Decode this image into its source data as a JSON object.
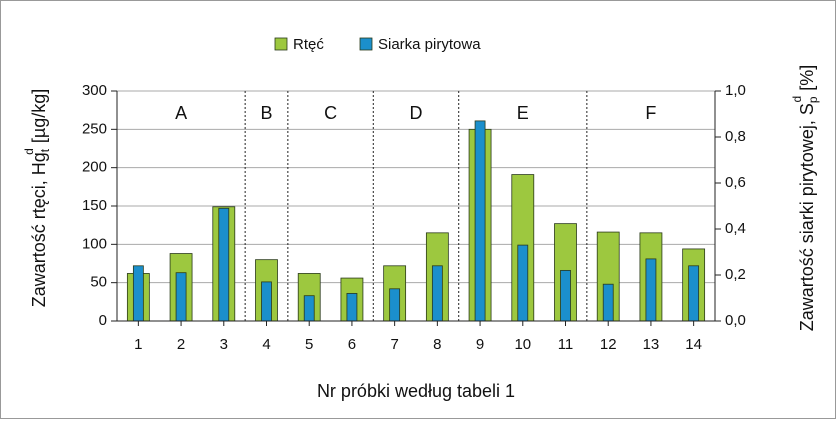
{
  "chart_data": {
    "type": "bar",
    "legend_position": "top",
    "ylabel": [
      "Zawartość rtęci, Hg",
      "t",
      "d",
      "  [µg/kg]"
    ],
    "y2label": [
      "Zawartość siarki pirytowej, S",
      "p",
      "d",
      " [%]"
    ],
    "xlabel": "Nr próbki według tabeli 1",
    "categories": [
      "1",
      "2",
      "3",
      "4",
      "5",
      "6",
      "7",
      "8",
      "9",
      "10",
      "11",
      "12",
      "13",
      "14"
    ],
    "groups": [
      {
        "label": "A",
        "size": 3
      },
      {
        "label": "B",
        "size": 1
      },
      {
        "label": "C",
        "size": 2
      },
      {
        "label": "D",
        "size": 2
      },
      {
        "label": "E",
        "size": 3
      },
      {
        "label": "F",
        "size": 3
      }
    ],
    "series": [
      {
        "name": "Rtęć",
        "color": "#9dc83f",
        "values": [
          62,
          88,
          149,
          80,
          62,
          56,
          72,
          115,
          250,
          191,
          127,
          116,
          115,
          94
        ]
      },
      {
        "name": "Siarka pirytowa",
        "color": "#1b8fcc",
        "axis": "y2",
        "values": [
          0.24,
          0.21,
          0.49,
          0.17,
          0.11,
          0.12,
          0.14,
          0.24,
          0.87,
          0.33,
          0.22,
          0.16,
          0.27,
          0.24
        ]
      }
    ],
    "ylim": [
      0,
      300
    ],
    "yticks": [
      0,
      50,
      100,
      150,
      200,
      250,
      300
    ],
    "y2lim": [
      0,
      1
    ],
    "y2ticks": [
      {
        "value": 0,
        "label": "0,0"
      },
      {
        "value": 0.2,
        "label": "0,2"
      },
      {
        "value": 0.4,
        "label": "0,4"
      },
      {
        "value": 0.6,
        "label": "0,6"
      },
      {
        "value": 0.8,
        "label": "0,8"
      },
      {
        "value": 1,
        "label": "1,0"
      }
    ],
    "grid": true
  }
}
